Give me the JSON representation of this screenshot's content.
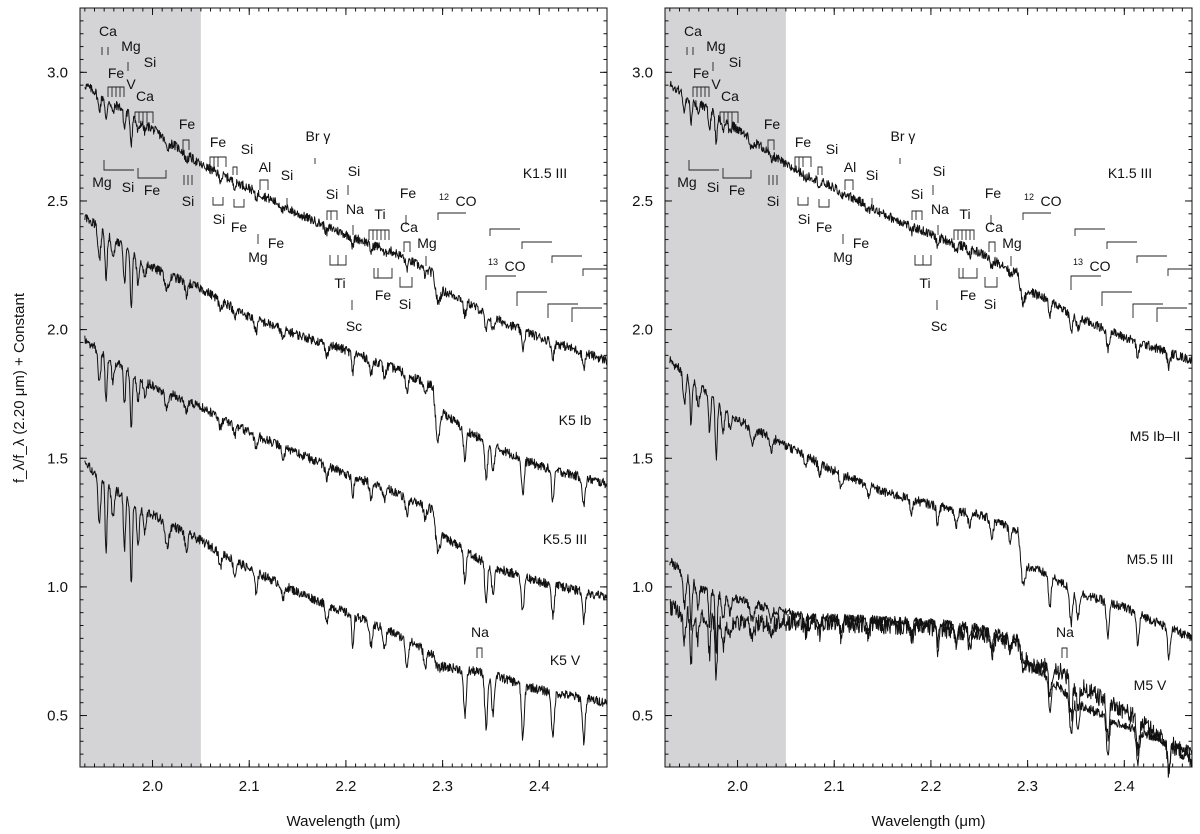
{
  "figure": {
    "y_axis_label_main": "(2.20 μm) + Constant",
    "shade_color": "#d4d4d6",
    "line_color": "#111111"
  },
  "chart_data": [
    {
      "type": "line",
      "panel": "left",
      "xlabel": "Wavelength (μm)",
      "ylabel": "f_λ/f_λ (2.20 μm) + Constant",
      "xlim": [
        1.925,
        2.47
      ],
      "ylim": [
        0.3,
        3.25
      ],
      "xticks": [
        2.0,
        2.1,
        2.2,
        2.3,
        2.4
      ],
      "xticklabels": [
        "2.0",
        "2.1",
        "2.2",
        "2.3",
        "2.4"
      ],
      "yticks": [
        0.5,
        1.0,
        1.5,
        2.0,
        2.5,
        3.0
      ],
      "yticklabels": [
        "0.5",
        "1.0",
        "1.5",
        "2.0",
        "2.5",
        "3.0"
      ],
      "shaded_region": [
        1.925,
        2.05
      ],
      "series": [
        {
          "name": "K1.5 III",
          "points": [
            [
              1.93,
              2.95
            ],
            [
              1.96,
              2.88
            ],
            [
              2.0,
              2.78
            ],
            [
              2.05,
              2.64
            ],
            [
              2.1,
              2.55
            ],
            [
              2.15,
              2.45
            ],
            [
              2.2,
              2.37
            ],
            [
              2.25,
              2.3
            ],
            [
              2.29,
              2.22
            ],
            [
              2.295,
              2.1
            ],
            [
              2.3,
              2.15
            ],
            [
              2.32,
              2.12
            ],
            [
              2.35,
              2.05
            ],
            [
              2.4,
              1.97
            ],
            [
              2.47,
              1.88
            ]
          ]
        },
        {
          "name": "K5 Ib",
          "points": [
            [
              1.93,
              2.44
            ],
            [
              1.96,
              2.35
            ],
            [
              2.0,
              2.24
            ],
            [
              2.05,
              2.16
            ],
            [
              2.1,
              2.05
            ],
            [
              2.15,
              1.98
            ],
            [
              2.2,
              1.92
            ],
            [
              2.25,
              1.85
            ],
            [
              2.29,
              1.78
            ],
            [
              2.295,
              1.55
            ],
            [
              2.3,
              1.68
            ],
            [
              2.32,
              1.62
            ],
            [
              2.35,
              1.55
            ],
            [
              2.4,
              1.47
            ],
            [
              2.47,
              1.4
            ]
          ]
        },
        {
          "name": "K5.5 III",
          "points": [
            [
              1.93,
              1.96
            ],
            [
              1.96,
              1.88
            ],
            [
              2.0,
              1.78
            ],
            [
              2.05,
              1.7
            ],
            [
              2.1,
              1.6
            ],
            [
              2.15,
              1.52
            ],
            [
              2.2,
              1.44
            ],
            [
              2.25,
              1.37
            ],
            [
              2.29,
              1.3
            ],
            [
              2.295,
              1.12
            ],
            [
              2.3,
              1.2
            ],
            [
              2.32,
              1.15
            ],
            [
              2.35,
              1.08
            ],
            [
              2.4,
              1.02
            ],
            [
              2.47,
              0.96
            ]
          ]
        },
        {
          "name": "K5 V",
          "points": [
            [
              1.93,
              1.48
            ],
            [
              1.96,
              1.38
            ],
            [
              2.0,
              1.28
            ],
            [
              2.05,
              1.18
            ],
            [
              2.1,
              1.07
            ],
            [
              2.15,
              0.98
            ],
            [
              2.2,
              0.9
            ],
            [
              2.25,
              0.82
            ],
            [
              2.29,
              0.74
            ],
            [
              2.295,
              0.68
            ],
            [
              2.3,
              0.69
            ],
            [
              2.32,
              0.68
            ],
            [
              2.35,
              0.66
            ],
            [
              2.4,
              0.6
            ],
            [
              2.47,
              0.55
            ]
          ]
        }
      ],
      "annotations": [
        "Ca",
        "Mg",
        "Fe",
        "V",
        "Si",
        "Ca",
        "Mg",
        "Si",
        "Fe",
        "Fe",
        "Si",
        "Fe",
        "Si",
        "Si",
        "Fe",
        "Al",
        "Mg",
        "Fe",
        "Si",
        "Br γ",
        "Si",
        "Si",
        "Na",
        "Ti",
        "Fe",
        "Ca",
        "Mg",
        "Ti",
        "Sc",
        "Fe",
        "Si",
        "12",
        "CO",
        "13",
        "CO",
        "Na"
      ]
    },
    {
      "type": "line",
      "panel": "right",
      "xlabel": "Wavelength (μm)",
      "xlim": [
        1.925,
        2.47
      ],
      "ylim": [
        0.3,
        3.25
      ],
      "xticks": [
        2.0,
        2.1,
        2.2,
        2.3,
        2.4
      ],
      "xticklabels": [
        "2.0",
        "2.1",
        "2.2",
        "2.3",
        "2.4"
      ],
      "yticks": [
        0.5,
        1.0,
        1.5,
        2.0,
        2.5,
        3.0
      ],
      "yticklabels": [
        "0.5",
        "1.0",
        "1.5",
        "2.0",
        "2.5",
        "3.0"
      ],
      "shaded_region": [
        1.925,
        2.05
      ],
      "series": [
        {
          "name": "K1.5 III",
          "points": [
            [
              1.93,
              2.95
            ],
            [
              1.96,
              2.88
            ],
            [
              2.0,
              2.78
            ],
            [
              2.05,
              2.64
            ],
            [
              2.1,
              2.55
            ],
            [
              2.15,
              2.45
            ],
            [
              2.2,
              2.37
            ],
            [
              2.25,
              2.3
            ],
            [
              2.29,
              2.22
            ],
            [
              2.295,
              2.1
            ],
            [
              2.3,
              2.15
            ],
            [
              2.32,
              2.12
            ],
            [
              2.35,
              2.05
            ],
            [
              2.4,
              1.97
            ],
            [
              2.47,
              1.88
            ]
          ]
        },
        {
          "name": "M5 Ib–II",
          "points": [
            [
              1.93,
              1.88
            ],
            [
              1.96,
              1.78
            ],
            [
              2.0,
              1.65
            ],
            [
              2.05,
              1.55
            ],
            [
              2.1,
              1.45
            ],
            [
              2.15,
              1.37
            ],
            [
              2.2,
              1.32
            ],
            [
              2.25,
              1.28
            ],
            [
              2.29,
              1.22
            ],
            [
              2.295,
              1.0
            ],
            [
              2.3,
              1.08
            ],
            [
              2.32,
              1.05
            ],
            [
              2.35,
              0.98
            ],
            [
              2.4,
              0.92
            ],
            [
              2.47,
              0.8
            ]
          ]
        },
        {
          "name": "M5.5 III",
          "points": [
            [
              1.93,
              1.1
            ],
            [
              1.96,
              1.0
            ],
            [
              2.0,
              0.95
            ],
            [
              2.05,
              0.9
            ],
            [
              2.1,
              0.88
            ],
            [
              2.15,
              0.87
            ],
            [
              2.2,
              0.86
            ],
            [
              2.25,
              0.84
            ],
            [
              2.29,
              0.8
            ],
            [
              2.295,
              0.68
            ],
            [
              2.3,
              0.7
            ],
            [
              2.32,
              0.65
            ],
            [
              2.35,
              0.55
            ],
            [
              2.4,
              0.46
            ],
            [
              2.47,
              0.36
            ]
          ]
        },
        {
          "name": "M5 V"
        }
      ],
      "annotations": [
        "Ca",
        "Mg",
        "Fe",
        "V",
        "Si",
        "Ca",
        "Mg",
        "Si",
        "Fe",
        "Fe",
        "Si",
        "Fe",
        "Si",
        "Si",
        "Fe",
        "Al",
        "Mg",
        "Fe",
        "Si",
        "Br γ",
        "Si",
        "Si",
        "Na",
        "Ti",
        "Fe",
        "Ca",
        "Mg",
        "Ti",
        "Sc",
        "Fe",
        "Si",
        "12",
        "CO",
        "13",
        "CO",
        "Na"
      ]
    }
  ]
}
